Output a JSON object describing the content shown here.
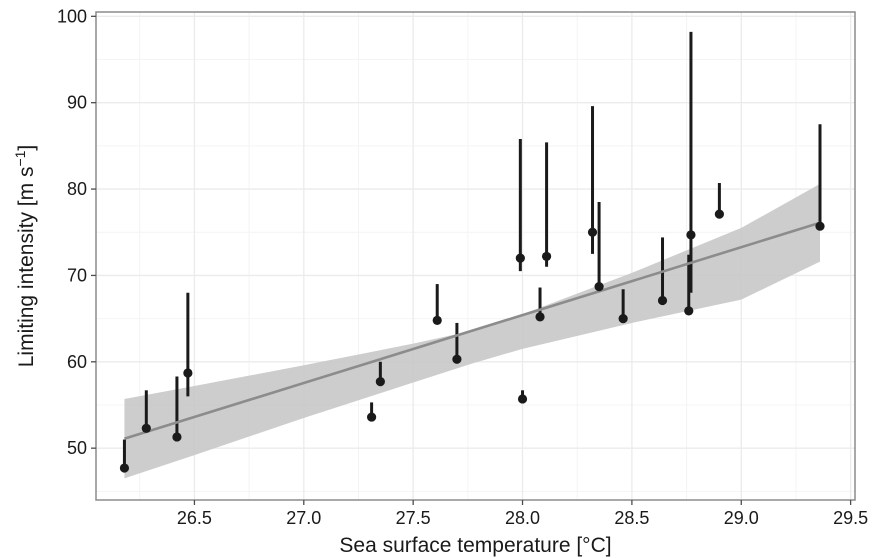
{
  "chart_data": {
    "type": "scatter",
    "xlabel": "Sea surface temperature [°C]",
    "ylabel_main": "Limiting intensity [m s",
    "ylabel_sup": "−1",
    "ylabel_close": "]",
    "xlim": [
      26.05,
      29.52
    ],
    "ylim": [
      44,
      100.5
    ],
    "x_ticks": [
      26.5,
      27.0,
      27.5,
      28.0,
      28.5,
      29.0,
      29.5
    ],
    "x_tick_labels": [
      "26.5",
      "27.0",
      "27.5",
      "28.0",
      "28.5",
      "29.0",
      "29.5"
    ],
    "y_ticks": [
      50,
      60,
      70,
      80,
      90,
      100
    ],
    "y_tick_labels": [
      "50",
      "60",
      "70",
      "80",
      "90",
      "100"
    ],
    "x_minor_ticks": [
      26.25,
      26.75,
      27.25,
      27.75,
      28.25,
      28.75,
      29.25
    ],
    "y_minor_ticks": [
      45,
      55,
      65,
      75,
      85,
      95
    ],
    "grid": true,
    "colors": {
      "points": "#1a1a1a",
      "fit_line": "#8c8c8c",
      "ribbon": "#c8c8c8",
      "grid": "#ebebeb",
      "panel_border": "#8c8c8c"
    },
    "points": [
      {
        "x": 26.18,
        "y": 47.7,
        "lo": 47.7,
        "hi": 51.0
      },
      {
        "x": 26.28,
        "y": 52.3,
        "lo": 52.3,
        "hi": 56.7
      },
      {
        "x": 26.42,
        "y": 51.3,
        "lo": 51.3,
        "hi": 58.3
      },
      {
        "x": 26.47,
        "y": 58.7,
        "lo": 56.0,
        "hi": 68.0
      },
      {
        "x": 27.31,
        "y": 53.6,
        "lo": 53.6,
        "hi": 55.3
      },
      {
        "x": 27.35,
        "y": 57.7,
        "lo": 57.7,
        "hi": 60.0
      },
      {
        "x": 27.61,
        "y": 64.8,
        "lo": 64.8,
        "hi": 69.0
      },
      {
        "x": 27.7,
        "y": 60.3,
        "lo": 60.3,
        "hi": 64.5
      },
      {
        "x": 27.99,
        "y": 72.0,
        "lo": 70.5,
        "hi": 85.8
      },
      {
        "x": 28.0,
        "y": 55.7,
        "lo": 55.7,
        "hi": 56.7
      },
      {
        "x": 28.08,
        "y": 65.2,
        "lo": 65.2,
        "hi": 68.6
      },
      {
        "x": 28.11,
        "y": 72.2,
        "lo": 71.0,
        "hi": 85.4
      },
      {
        "x": 28.32,
        "y": 75.0,
        "lo": 72.5,
        "hi": 89.6
      },
      {
        "x": 28.35,
        "y": 68.7,
        "lo": 68.7,
        "hi": 78.5
      },
      {
        "x": 28.46,
        "y": 65.0,
        "lo": 65.0,
        "hi": 68.4
      },
      {
        "x": 28.64,
        "y": 67.1,
        "lo": 67.1,
        "hi": 74.4
      },
      {
        "x": 28.76,
        "y": 65.9,
        "lo": 65.9,
        "hi": 72.4
      },
      {
        "x": 28.77,
        "y": 74.7,
        "lo": 68.0,
        "hi": 98.2
      },
      {
        "x": 28.9,
        "y": 77.1,
        "lo": 77.1,
        "hi": 80.7
      },
      {
        "x": 29.36,
        "y": 75.7,
        "lo": 75.7,
        "hi": 87.5
      }
    ],
    "fit": {
      "x0": 26.18,
      "y0": 51.1,
      "x1": 29.36,
      "y1": 76.1
    },
    "ribbon": [
      {
        "x": 26.18,
        "lo": 46.5,
        "hi": 55.7
      },
      {
        "x": 26.5,
        "lo": 49.2,
        "hi": 57.2
      },
      {
        "x": 27.0,
        "lo": 53.5,
        "hi": 59.6
      },
      {
        "x": 27.5,
        "lo": 57.6,
        "hi": 62.1
      },
      {
        "x": 27.77,
        "lo": 59.8,
        "hi": 63.6
      },
      {
        "x": 28.0,
        "lo": 61.5,
        "hi": 65.5
      },
      {
        "x": 28.5,
        "lo": 64.5,
        "hi": 70.3
      },
      {
        "x": 29.0,
        "lo": 67.2,
        "hi": 75.5
      },
      {
        "x": 29.36,
        "lo": 71.6,
        "hi": 80.6
      }
    ]
  }
}
